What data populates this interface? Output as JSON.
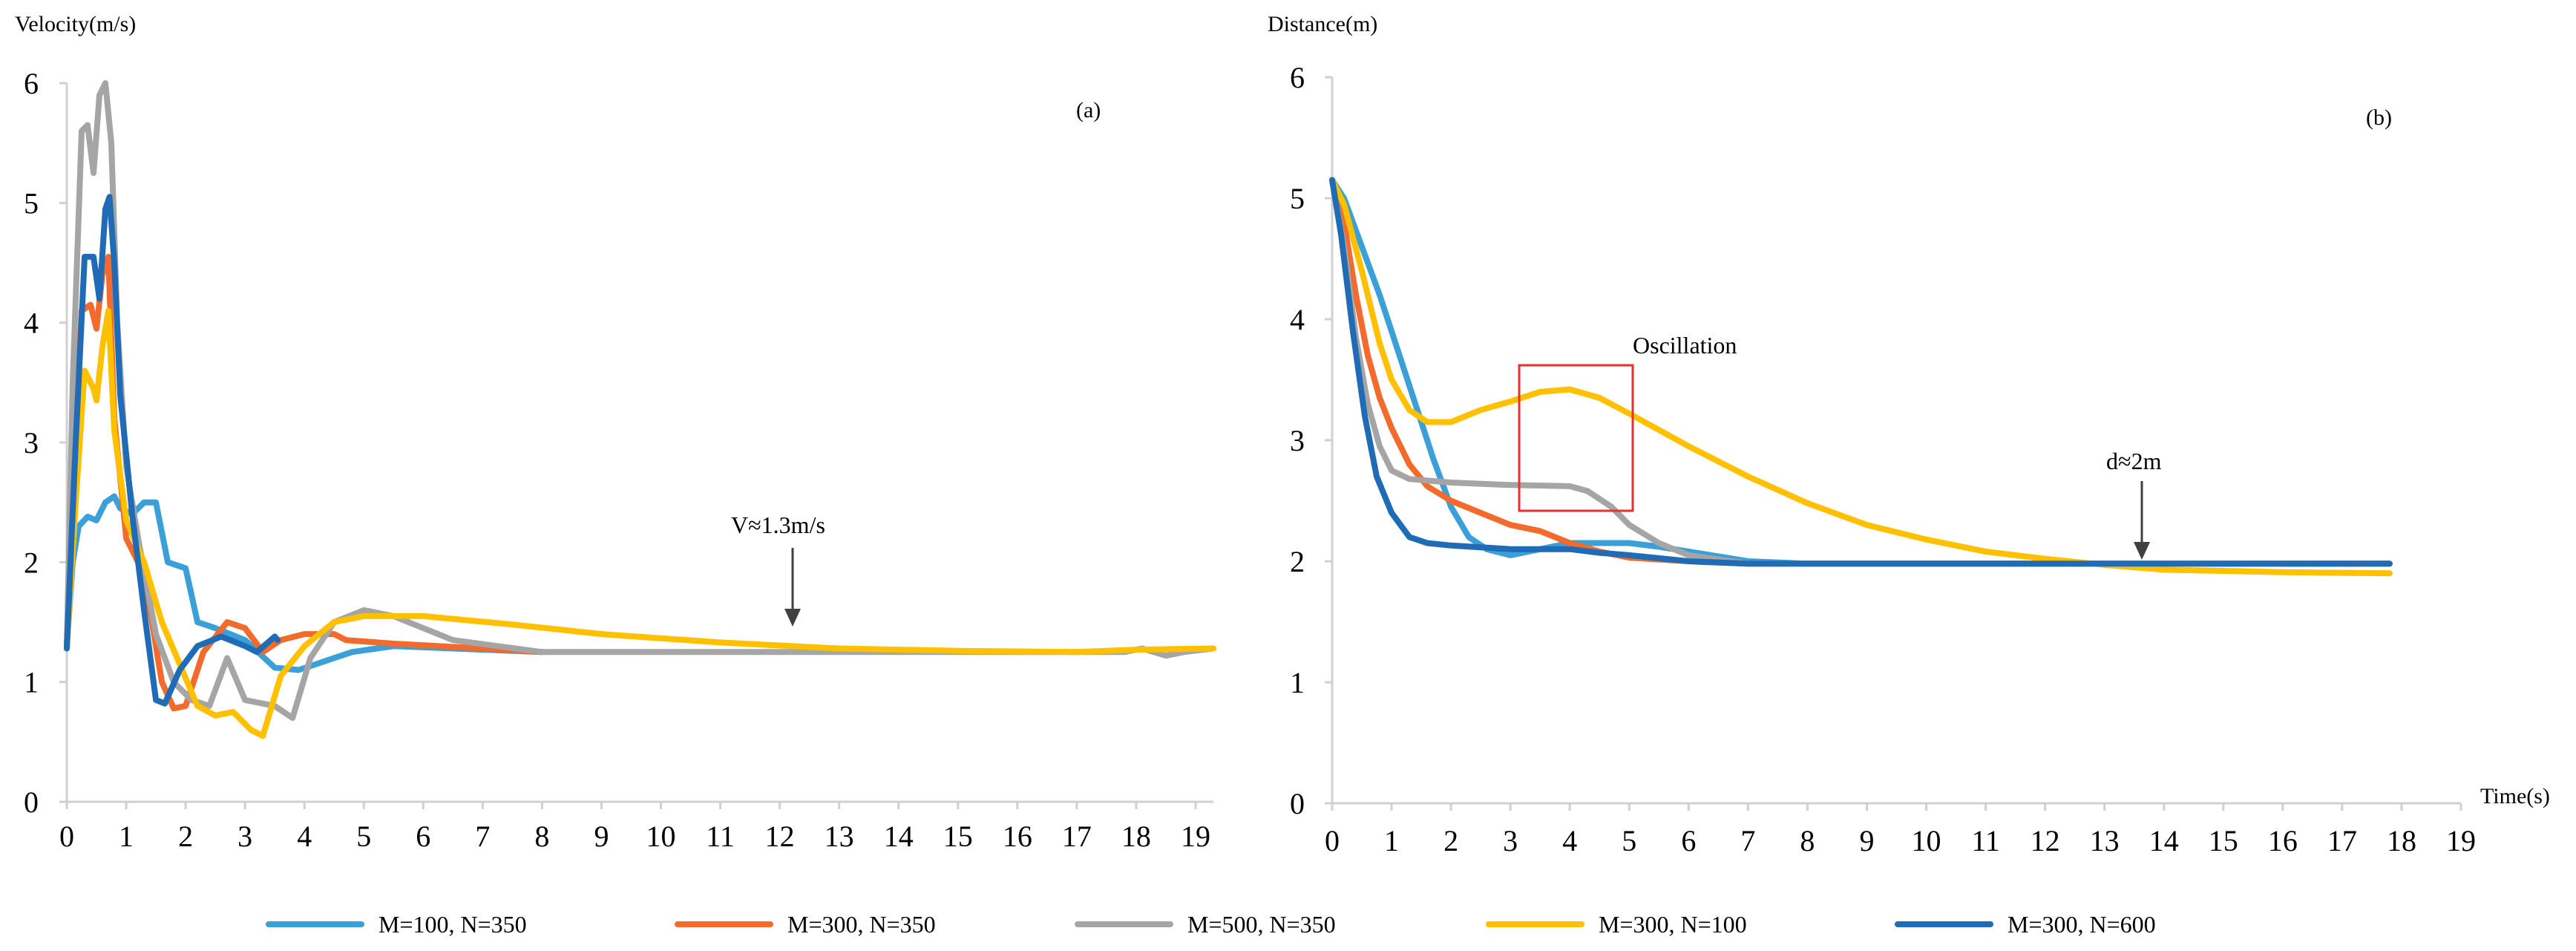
{
  "legend": [
    {
      "label": "M=100, N=350",
      "color": "#3b9fd8"
    },
    {
      "label": "M=300, N=350",
      "color": "#f26a2c"
    },
    {
      "label": "M=500, N=350",
      "color": "#a5a5a5"
    },
    {
      "label": "M=300, N=100",
      "color": "#ffc000"
    },
    {
      "label": "M=300, N=600",
      "color": "#1f6bb5"
    }
  ],
  "chart_data": [
    {
      "type": "line",
      "title": "",
      "panel_label": "(a)",
      "ylabel": "Velocity(m/s)",
      "xlabel": "",
      "xlim": [
        0,
        19.3
      ],
      "ylim": [
        0,
        6
      ],
      "xticks": [
        0,
        1,
        2,
        3,
        4,
        5,
        6,
        7,
        8,
        9,
        10,
        11,
        12,
        13,
        14,
        15,
        16,
        17,
        18,
        19
      ],
      "yticks": [
        0,
        1,
        2,
        3,
        4,
        5,
        6
      ],
      "annotations": [
        {
          "text": "V≈1.3m/s",
          "x": 12.3,
          "y": 1.3,
          "arrow": true
        }
      ],
      "series": [
        {
          "name": "M=100, N=350",
          "points": [
            [
              0,
              1.3
            ],
            [
              0.1,
              2.0
            ],
            [
              0.2,
              2.3
            ],
            [
              0.35,
              2.38
            ],
            [
              0.5,
              2.35
            ],
            [
              0.65,
              2.5
            ],
            [
              0.8,
              2.55
            ],
            [
              0.9,
              2.45
            ],
            [
              1.1,
              2.4
            ],
            [
              1.3,
              2.5
            ],
            [
              1.5,
              2.5
            ],
            [
              1.7,
              2.0
            ],
            [
              2.0,
              1.95
            ],
            [
              2.2,
              1.5
            ],
            [
              2.5,
              1.45
            ],
            [
              3.0,
              1.35
            ],
            [
              3.5,
              1.12
            ],
            [
              3.9,
              1.1
            ],
            [
              4.2,
              1.15
            ],
            [
              4.8,
              1.25
            ],
            [
              5.5,
              1.3
            ],
            [
              6.5,
              1.28
            ],
            [
              8,
              1.25
            ]
          ]
        },
        {
          "name": "M=300, N=350",
          "points": [
            [
              0,
              1.3
            ],
            [
              0.1,
              2.6
            ],
            [
              0.25,
              4.1
            ],
            [
              0.4,
              4.15
            ],
            [
              0.5,
              3.95
            ],
            [
              0.6,
              4.4
            ],
            [
              0.7,
              4.55
            ],
            [
              0.8,
              3.2
            ],
            [
              1.0,
              2.2
            ],
            [
              1.3,
              1.9
            ],
            [
              1.6,
              1.0
            ],
            [
              1.8,
              0.78
            ],
            [
              2.0,
              0.8
            ],
            [
              2.3,
              1.25
            ],
            [
              2.7,
              1.5
            ],
            [
              3.0,
              1.45
            ],
            [
              3.3,
              1.25
            ],
            [
              3.6,
              1.35
            ],
            [
              4.0,
              1.4
            ],
            [
              4.5,
              1.4
            ],
            [
              4.7,
              1.35
            ],
            [
              5.5,
              1.32
            ],
            [
              7,
              1.28
            ],
            [
              8,
              1.25
            ]
          ]
        },
        {
          "name": "M=500, N=350",
          "points": [
            [
              0,
              1.3
            ],
            [
              0.1,
              3.5
            ],
            [
              0.25,
              5.6
            ],
            [
              0.35,
              5.65
            ],
            [
              0.45,
              5.25
            ],
            [
              0.55,
              5.9
            ],
            [
              0.65,
              6.0
            ],
            [
              0.75,
              5.5
            ],
            [
              0.85,
              4.0
            ],
            [
              1.0,
              2.8
            ],
            [
              1.2,
              2.2
            ],
            [
              1.5,
              1.4
            ],
            [
              1.8,
              1.0
            ],
            [
              2.1,
              0.85
            ],
            [
              2.4,
              0.8
            ],
            [
              2.7,
              1.2
            ],
            [
              3.0,
              0.85
            ],
            [
              3.5,
              0.8
            ],
            [
              3.8,
              0.7
            ],
            [
              4.1,
              1.2
            ],
            [
              4.5,
              1.5
            ],
            [
              5.0,
              1.6
            ],
            [
              5.5,
              1.55
            ],
            [
              6.5,
              1.35
            ],
            [
              8,
              1.25
            ],
            [
              12,
              1.25
            ],
            [
              15,
              1.25
            ],
            [
              17.8,
              1.25
            ],
            [
              18.1,
              1.28
            ],
            [
              18.5,
              1.22
            ],
            [
              18.8,
              1.25
            ],
            [
              19.3,
              1.28
            ]
          ]
        },
        {
          "name": "M=300, N=100",
          "points": [
            [
              0,
              1.28
            ],
            [
              0.15,
              2.5
            ],
            [
              0.3,
              3.6
            ],
            [
              0.45,
              3.45
            ],
            [
              0.5,
              3.35
            ],
            [
              0.6,
              3.8
            ],
            [
              0.7,
              4.1
            ],
            [
              0.8,
              3.1
            ],
            [
              1.0,
              2.35
            ],
            [
              1.3,
              2.0
            ],
            [
              1.6,
              1.5
            ],
            [
              1.9,
              1.15
            ],
            [
              2.2,
              0.8
            ],
            [
              2.5,
              0.72
            ],
            [
              2.8,
              0.75
            ],
            [
              3.1,
              0.6
            ],
            [
              3.3,
              0.55
            ],
            [
              3.6,
              1.05
            ],
            [
              4.0,
              1.3
            ],
            [
              4.5,
              1.5
            ],
            [
              5.0,
              1.55
            ],
            [
              6.0,
              1.55
            ],
            [
              7.5,
              1.48
            ],
            [
              9,
              1.4
            ],
            [
              11,
              1.33
            ],
            [
              13,
              1.28
            ],
            [
              15,
              1.26
            ],
            [
              17,
              1.25
            ],
            [
              18,
              1.27
            ],
            [
              19.3,
              1.28
            ]
          ]
        },
        {
          "name": "M=300, N=600",
          "points": [
            [
              0,
              1.28
            ],
            [
              0.15,
              3.0
            ],
            [
              0.3,
              4.55
            ],
            [
              0.45,
              4.55
            ],
            [
              0.55,
              4.2
            ],
            [
              0.65,
              4.95
            ],
            [
              0.72,
              5.05
            ],
            [
              0.8,
              4.5
            ],
            [
              0.9,
              3.4
            ],
            [
              1.1,
              2.4
            ],
            [
              1.3,
              1.6
            ],
            [
              1.5,
              0.85
            ],
            [
              1.65,
              0.82
            ],
            [
              1.9,
              1.1
            ],
            [
              2.2,
              1.3
            ],
            [
              2.6,
              1.38
            ],
            [
              3.0,
              1.3
            ],
            [
              3.2,
              1.25
            ],
            [
              3.5,
              1.38
            ],
            [
              3.55,
              1.35
            ]
          ]
        }
      ]
    },
    {
      "type": "line",
      "title": "",
      "panel_label": "(b)",
      "ylabel": "Distance(m)",
      "xlabel": "Time(s)",
      "xlim": [
        0,
        19
      ],
      "ylim": [
        0,
        6
      ],
      "xticks": [
        0,
        1,
        2,
        3,
        4,
        5,
        6,
        7,
        8,
        9,
        10,
        11,
        12,
        13,
        14,
        15,
        16,
        17,
        18,
        19
      ],
      "yticks": [
        0,
        1,
        2,
        3,
        4,
        5,
        6
      ],
      "annotations": [
        {
          "text": "Oscillation",
          "x": 4.05,
          "y": 3.62,
          "box": [
            3.1,
            5.1,
            2.42,
            3.62
          ]
        },
        {
          "text": "d≈2m",
          "x": 13.7,
          "y": 2.0,
          "arrow": true
        }
      ],
      "series": [
        {
          "name": "M=100, N=350",
          "points": [
            [
              0,
              5.15
            ],
            [
              0.2,
              5.0
            ],
            [
              0.5,
              4.6
            ],
            [
              0.8,
              4.2
            ],
            [
              1.1,
              3.75
            ],
            [
              1.4,
              3.3
            ],
            [
              1.7,
              2.85
            ],
            [
              2.0,
              2.45
            ],
            [
              2.3,
              2.2
            ],
            [
              2.6,
              2.1
            ],
            [
              3.0,
              2.05
            ],
            [
              3.5,
              2.1
            ],
            [
              4.0,
              2.15
            ],
            [
              5.0,
              2.15
            ],
            [
              5.5,
              2.12
            ],
            [
              6.0,
              2.08
            ],
            [
              7,
              2.0
            ],
            [
              8,
              1.98
            ],
            [
              17.8,
              1.98
            ]
          ]
        },
        {
          "name": "M=300, N=350",
          "points": [
            [
              0,
              5.15
            ],
            [
              0.2,
              4.8
            ],
            [
              0.4,
              4.2
            ],
            [
              0.6,
              3.7
            ],
            [
              0.8,
              3.35
            ],
            [
              1.0,
              3.1
            ],
            [
              1.3,
              2.8
            ],
            [
              1.6,
              2.62
            ],
            [
              2.0,
              2.5
            ],
            [
              2.5,
              2.4
            ],
            [
              3.0,
              2.3
            ],
            [
              3.5,
              2.25
            ],
            [
              4.0,
              2.15
            ],
            [
              4.5,
              2.08
            ],
            [
              5.0,
              2.03
            ],
            [
              6.0,
              2.0
            ],
            [
              7,
              1.98
            ],
            [
              17.8,
              1.98
            ]
          ]
        },
        {
          "name": "M=500, N=350",
          "points": [
            [
              0,
              5.15
            ],
            [
              0.2,
              4.6
            ],
            [
              0.4,
              3.85
            ],
            [
              0.6,
              3.3
            ],
            [
              0.8,
              2.95
            ],
            [
              1.0,
              2.75
            ],
            [
              1.3,
              2.68
            ],
            [
              2.0,
              2.65
            ],
            [
              3.0,
              2.63
            ],
            [
              4.0,
              2.62
            ],
            [
              4.3,
              2.58
            ],
            [
              4.7,
              2.45
            ],
            [
              5.0,
              2.3
            ],
            [
              5.5,
              2.15
            ],
            [
              6.0,
              2.05
            ],
            [
              7,
              1.98
            ],
            [
              17.8,
              1.98
            ]
          ]
        },
        {
          "name": "M=300, N=100",
          "points": [
            [
              0,
              5.15
            ],
            [
              0.2,
              4.95
            ],
            [
              0.5,
              4.4
            ],
            [
              0.8,
              3.8
            ],
            [
              1.0,
              3.5
            ],
            [
              1.3,
              3.25
            ],
            [
              1.6,
              3.15
            ],
            [
              2.0,
              3.15
            ],
            [
              2.5,
              3.25
            ],
            [
              3.0,
              3.32
            ],
            [
              3.5,
              3.4
            ],
            [
              4.0,
              3.42
            ],
            [
              4.5,
              3.35
            ],
            [
              5.0,
              3.22
            ],
            [
              6.0,
              2.95
            ],
            [
              7.0,
              2.7
            ],
            [
              8.0,
              2.48
            ],
            [
              9.0,
              2.3
            ],
            [
              10,
              2.18
            ],
            [
              11,
              2.08
            ],
            [
              12,
              2.02
            ],
            [
              13,
              1.97
            ],
            [
              14,
              1.93
            ],
            [
              15,
              1.92
            ],
            [
              16,
              1.91
            ],
            [
              17.8,
              1.9
            ]
          ]
        },
        {
          "name": "M=300, N=600",
          "points": [
            [
              0,
              5.15
            ],
            [
              0.15,
              4.7
            ],
            [
              0.35,
              3.9
            ],
            [
              0.55,
              3.2
            ],
            [
              0.75,
              2.7
            ],
            [
              1.0,
              2.4
            ],
            [
              1.3,
              2.2
            ],
            [
              1.6,
              2.15
            ],
            [
              2.0,
              2.13
            ],
            [
              3.0,
              2.1
            ],
            [
              3.5,
              2.1
            ],
            [
              4.0,
              2.1
            ],
            [
              4.5,
              2.07
            ],
            [
              5.0,
              2.05
            ],
            [
              6.0,
              2.0
            ],
            [
              7,
              1.98
            ],
            [
              17.8,
              1.98
            ]
          ]
        }
      ]
    }
  ]
}
